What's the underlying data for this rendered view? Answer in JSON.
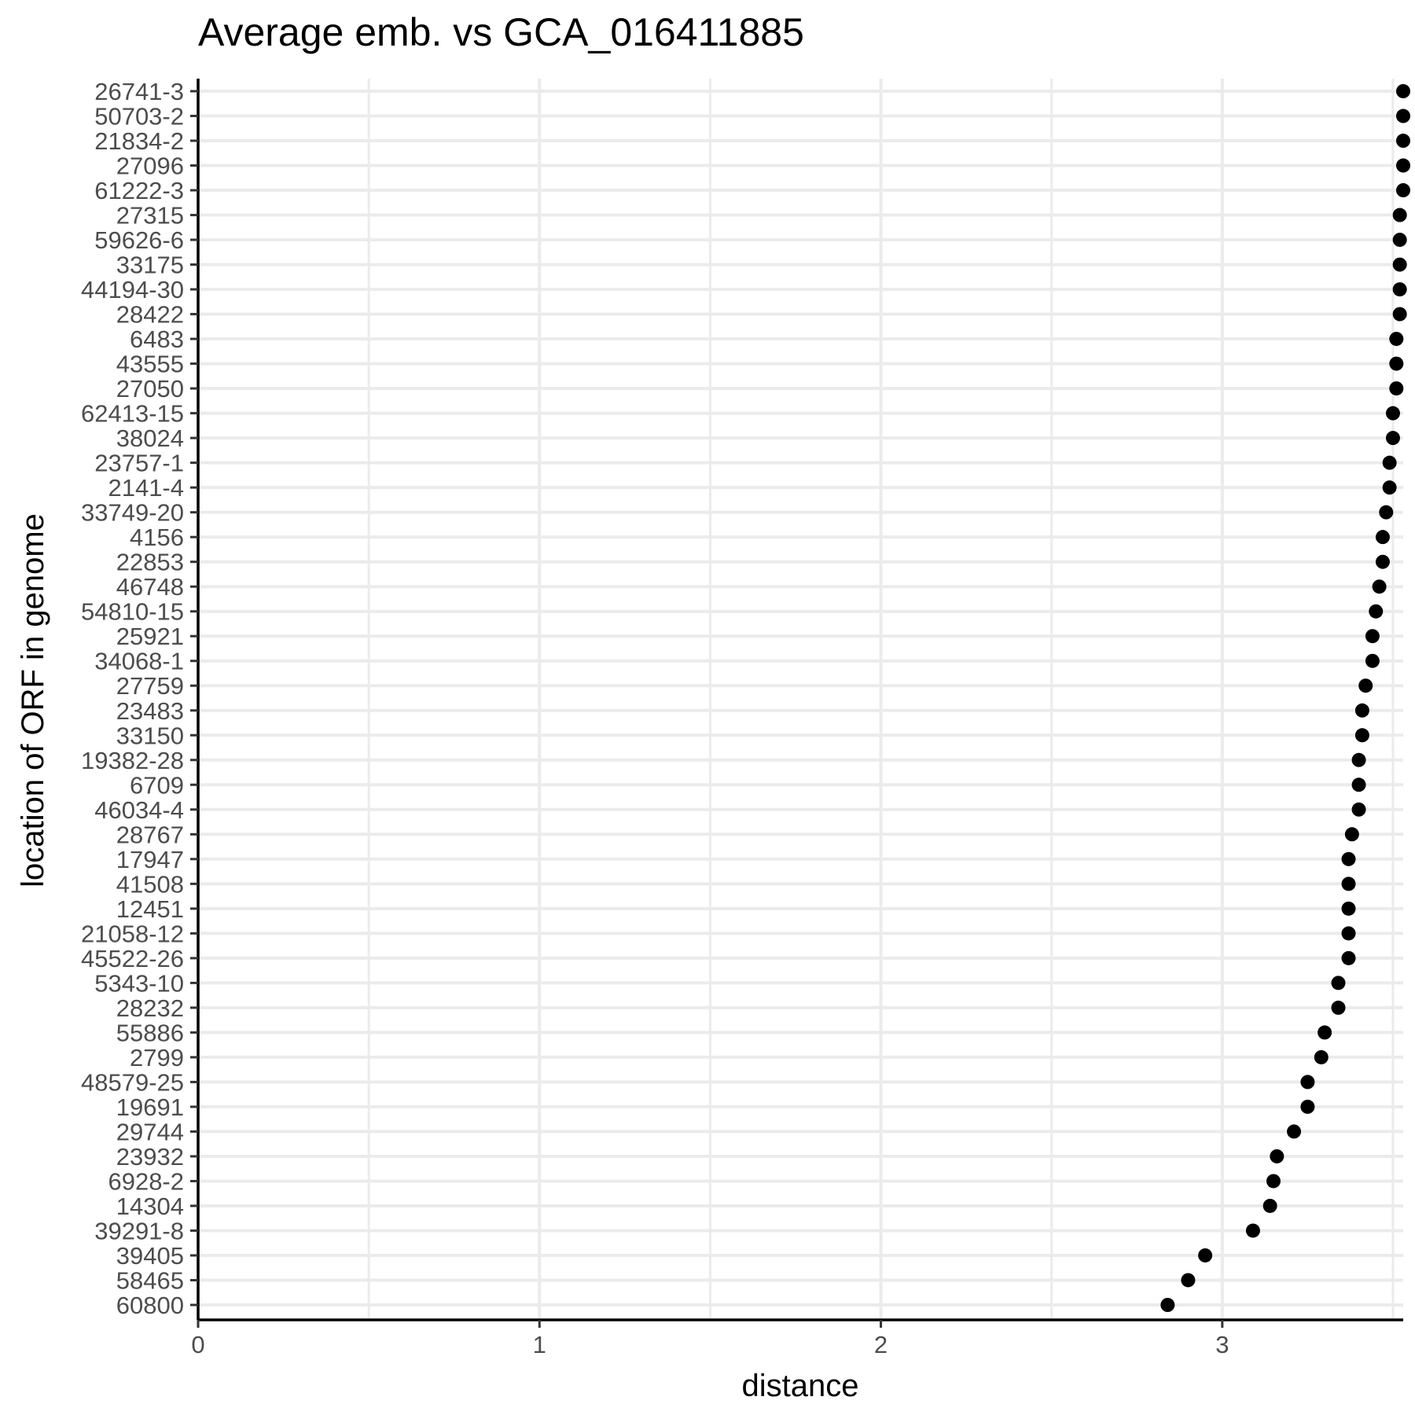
{
  "chart_data": {
    "type": "scatter",
    "title": "Average emb. vs GCA_016411885",
    "xlabel": "distance",
    "ylabel": "location of ORF in genome",
    "xlim": [
      0,
      3.53
    ],
    "x_ticks": [
      0,
      1,
      2,
      3
    ],
    "x_tick_labels": [
      "0",
      "1",
      "2",
      "3"
    ],
    "grid": true,
    "legend": "none",
    "categories": [
      "26741-3",
      "50703-2",
      "21834-2",
      "27096",
      "61222-3",
      "27315",
      "59626-6",
      "33175",
      "44194-30",
      "28422",
      "6483",
      "43555",
      "27050",
      "62413-15",
      "38024",
      "23757-1",
      "2141-4",
      "33749-20",
      "4156",
      "22853",
      "46748",
      "54810-15",
      "25921",
      "34068-1",
      "27759",
      "23483",
      "33150",
      "19382-28",
      "6709",
      "46034-4",
      "28767",
      "17947",
      "41508",
      "12451",
      "21058-12",
      "45522-26",
      "5343-10",
      "28232",
      "55886",
      "2799",
      "48579-25",
      "19691",
      "29744",
      "23932",
      "6928-2",
      "14304",
      "39291-8",
      "39405",
      "58465",
      "60800"
    ],
    "values": [
      3.53,
      3.53,
      3.53,
      3.53,
      3.53,
      3.52,
      3.52,
      3.52,
      3.52,
      3.52,
      3.51,
      3.51,
      3.51,
      3.5,
      3.5,
      3.49,
      3.49,
      3.48,
      3.47,
      3.47,
      3.46,
      3.45,
      3.44,
      3.44,
      3.42,
      3.41,
      3.41,
      3.4,
      3.4,
      3.4,
      3.38,
      3.37,
      3.37,
      3.37,
      3.37,
      3.37,
      3.34,
      3.34,
      3.3,
      3.29,
      3.25,
      3.25,
      3.21,
      3.16,
      3.15,
      3.14,
      3.09,
      2.95,
      2.9,
      2.84
    ],
    "colors": {
      "point": "#000000",
      "grid": "#ebebeb",
      "axis": "#000000",
      "tick_text": "#4d4d4d"
    }
  }
}
